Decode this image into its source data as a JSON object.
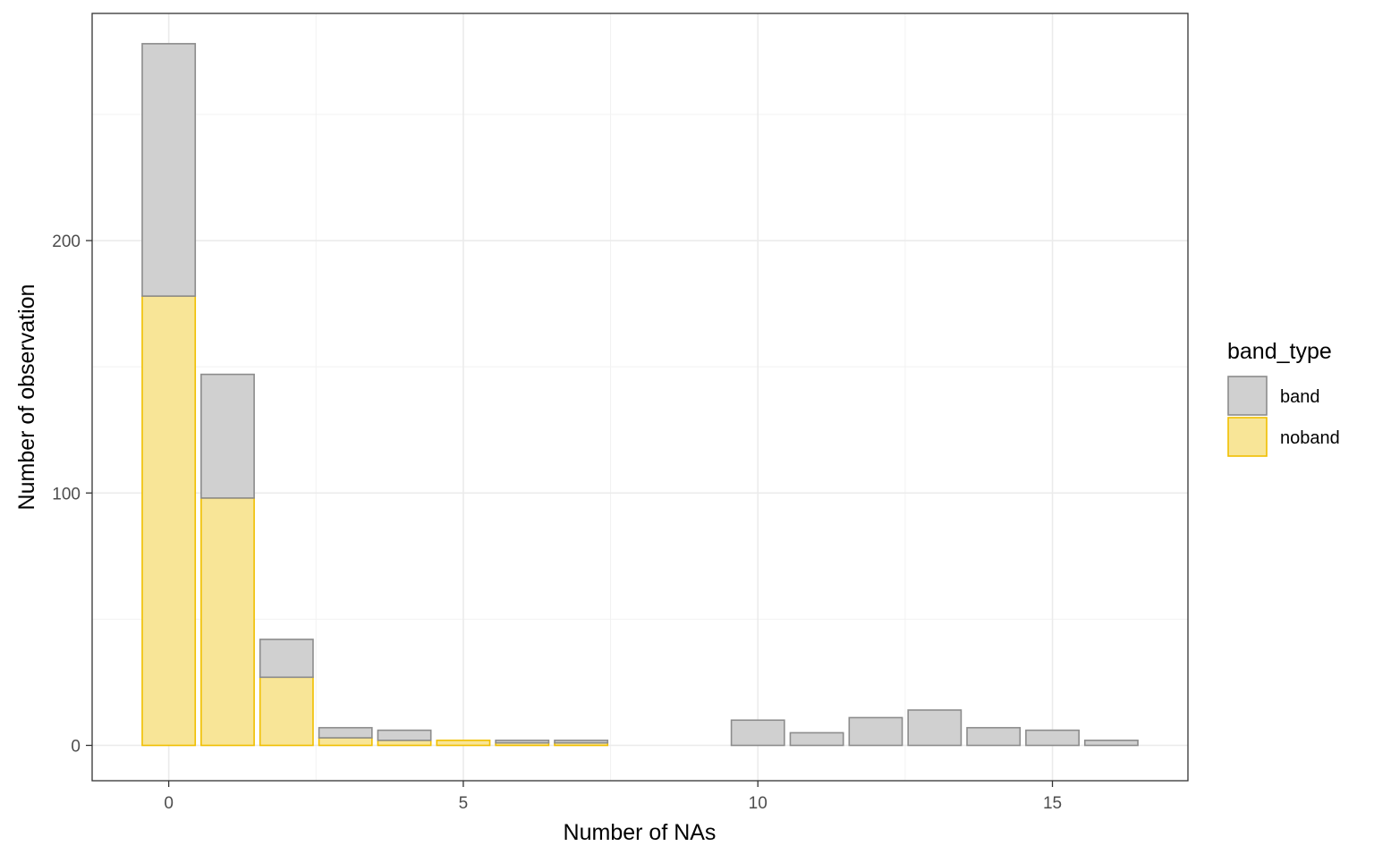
{
  "chart_data": {
    "type": "bar",
    "stacked": true,
    "xlabel": "Number of NAs",
    "ylabel": "Number of observation",
    "xlim": [
      -1.3,
      17.3
    ],
    "ylim": [
      -14,
      290
    ],
    "x_ticks": [
      0,
      5,
      10,
      15
    ],
    "y_ticks": [
      0,
      100,
      200
    ],
    "grid": true,
    "legend": {
      "title": "band_type",
      "position": "right",
      "entries": [
        {
          "label": "band",
          "fill": "#d0d0d0",
          "stroke": "#8c8c8c"
        },
        {
          "label": "noband",
          "fill": "#f8e597",
          "stroke": "#f0bf00"
        }
      ]
    },
    "x": [
      0,
      1,
      2,
      3,
      4,
      5,
      6,
      7,
      10,
      11,
      12,
      13,
      14,
      15,
      16
    ],
    "series": [
      {
        "name": "noband",
        "fill": "#f8e597",
        "stroke": "#f0bf00",
        "values": [
          178,
          98,
          27,
          3,
          2,
          2,
          1,
          1,
          0,
          0,
          0,
          0,
          0,
          0,
          0
        ]
      },
      {
        "name": "band",
        "fill": "#d0d0d0",
        "stroke": "#8c8c8c",
        "values": [
          100,
          49,
          15,
          4,
          4,
          0,
          1,
          1,
          10,
          5,
          11,
          14,
          7,
          6,
          2
        ]
      }
    ]
  }
}
